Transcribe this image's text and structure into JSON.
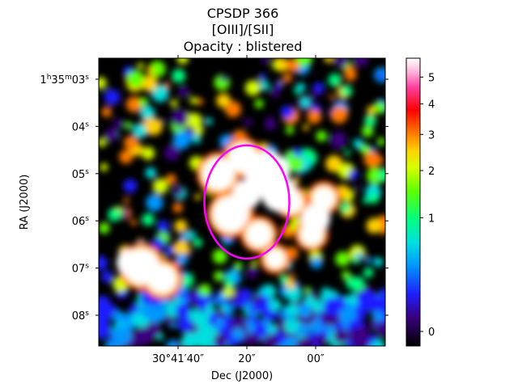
{
  "chart_data": {
    "type": "heatmap",
    "title": [
      "CPSDP 366",
      "[OIII]/[SII]",
      "Opacity : blistered"
    ],
    "xlabel": "Dec (J2000)",
    "ylabel": "RA (J2000)",
    "x_ticks": [
      {
        "label": "30°41′40″",
        "value": 40
      },
      {
        "label": "20″",
        "value": 20
      },
      {
        "label": "00″",
        "value": 0
      }
    ],
    "y_ticks": [
      {
        "label": "1h35m03s",
        "value": 3
      },
      {
        "label": "04s",
        "value": 4
      },
      {
        "label": "05s",
        "value": 5
      },
      {
        "label": "06s",
        "value": 6
      },
      {
        "label": "07s",
        "value": 7
      },
      {
        "label": "08s",
        "value": 8
      }
    ],
    "colorbar": {
      "colormap": "gist_ncar-like (black-blue-cyan-green-yellow-red-pink-white)",
      "scale": "sqrt",
      "range": [
        0,
        5.5
      ],
      "ticks": [
        0,
        1,
        2,
        3,
        4,
        5
      ]
    },
    "ellipse": {
      "color": "#ff00ff",
      "center_dec_arcsec": 20,
      "center_ra_s": 5.6,
      "width_arcsec": 21,
      "height_s": 2.4
    },
    "colors": {
      "ellipse": "#ff00ff",
      "masked": "#000000",
      "saturated": "#ffffff"
    }
  }
}
